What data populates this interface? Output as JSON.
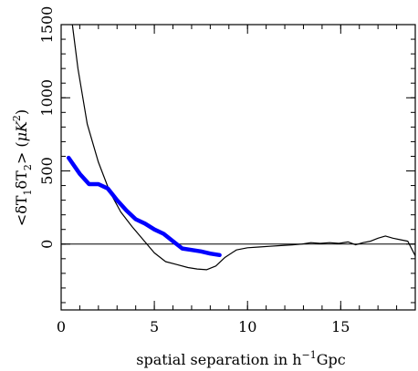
{
  "chart_data": {
    "type": "line",
    "xlabel_parts": {
      "pre": "spatial separation in h",
      "sup": "−1",
      "post": "Gpc"
    },
    "ylabel_parts": {
      "lt": "<",
      "d1": "δT",
      "s1": "1",
      "d2": "δT",
      "s2": "2",
      "gt": "> (",
      "mu": "μK",
      "sup": "2",
      "close": ")"
    },
    "xlim": [
      0,
      19
    ],
    "ylim": [
      -450,
      1500
    ],
    "x_ticks": [
      0,
      5,
      10,
      15
    ],
    "x_tick_labels": [
      "0",
      "5",
      "10",
      "15"
    ],
    "y_ticks": [
      0,
      500,
      1000,
      1500
    ],
    "y_tick_labels": [
      "0",
      "500",
      "1000",
      "1500"
    ],
    "x_minor_step": 1,
    "y_minor_step": 100,
    "zero_line": true,
    "series": [
      {
        "color": "#000000",
        "style": "thin",
        "x": [
          0.6,
          0.9,
          1.4,
          2.0,
          2.6,
          3.2,
          3.8,
          4.4,
          5.0,
          5.6,
          6.2,
          6.8,
          7.3,
          7.8,
          8.3,
          8.8,
          9.4,
          10.0,
          10.6,
          11.2,
          11.8,
          12.4,
          12.9,
          13.4,
          13.9,
          14.4,
          14.9,
          15.4,
          15.8,
          16.2,
          16.6,
          17.0,
          17.4,
          17.8,
          18.2,
          18.6,
          19.0
        ],
        "y": [
          1500,
          1200,
          820,
          560,
          360,
          220,
          120,
          30,
          -60,
          -120,
          -140,
          -160,
          -170,
          -175,
          -150,
          -90,
          -40,
          -25,
          -20,
          -15,
          -10,
          -5,
          0,
          10,
          5,
          10,
          5,
          15,
          -5,
          10,
          20,
          40,
          55,
          40,
          30,
          20,
          -80
        ]
      },
      {
        "color": "#0000ff",
        "style": "thick",
        "x": [
          0.4,
          1.0,
          1.5,
          2.0,
          2.5,
          3.0,
          3.5,
          4.0,
          4.5,
          5.0,
          5.5,
          6.0,
          6.5,
          7.0,
          7.5,
          8.0,
          8.5
        ],
        "y": [
          590,
          480,
          410,
          410,
          380,
          300,
          230,
          170,
          140,
          100,
          70,
          20,
          -30,
          -40,
          -50,
          -65,
          -75
        ]
      }
    ]
  }
}
